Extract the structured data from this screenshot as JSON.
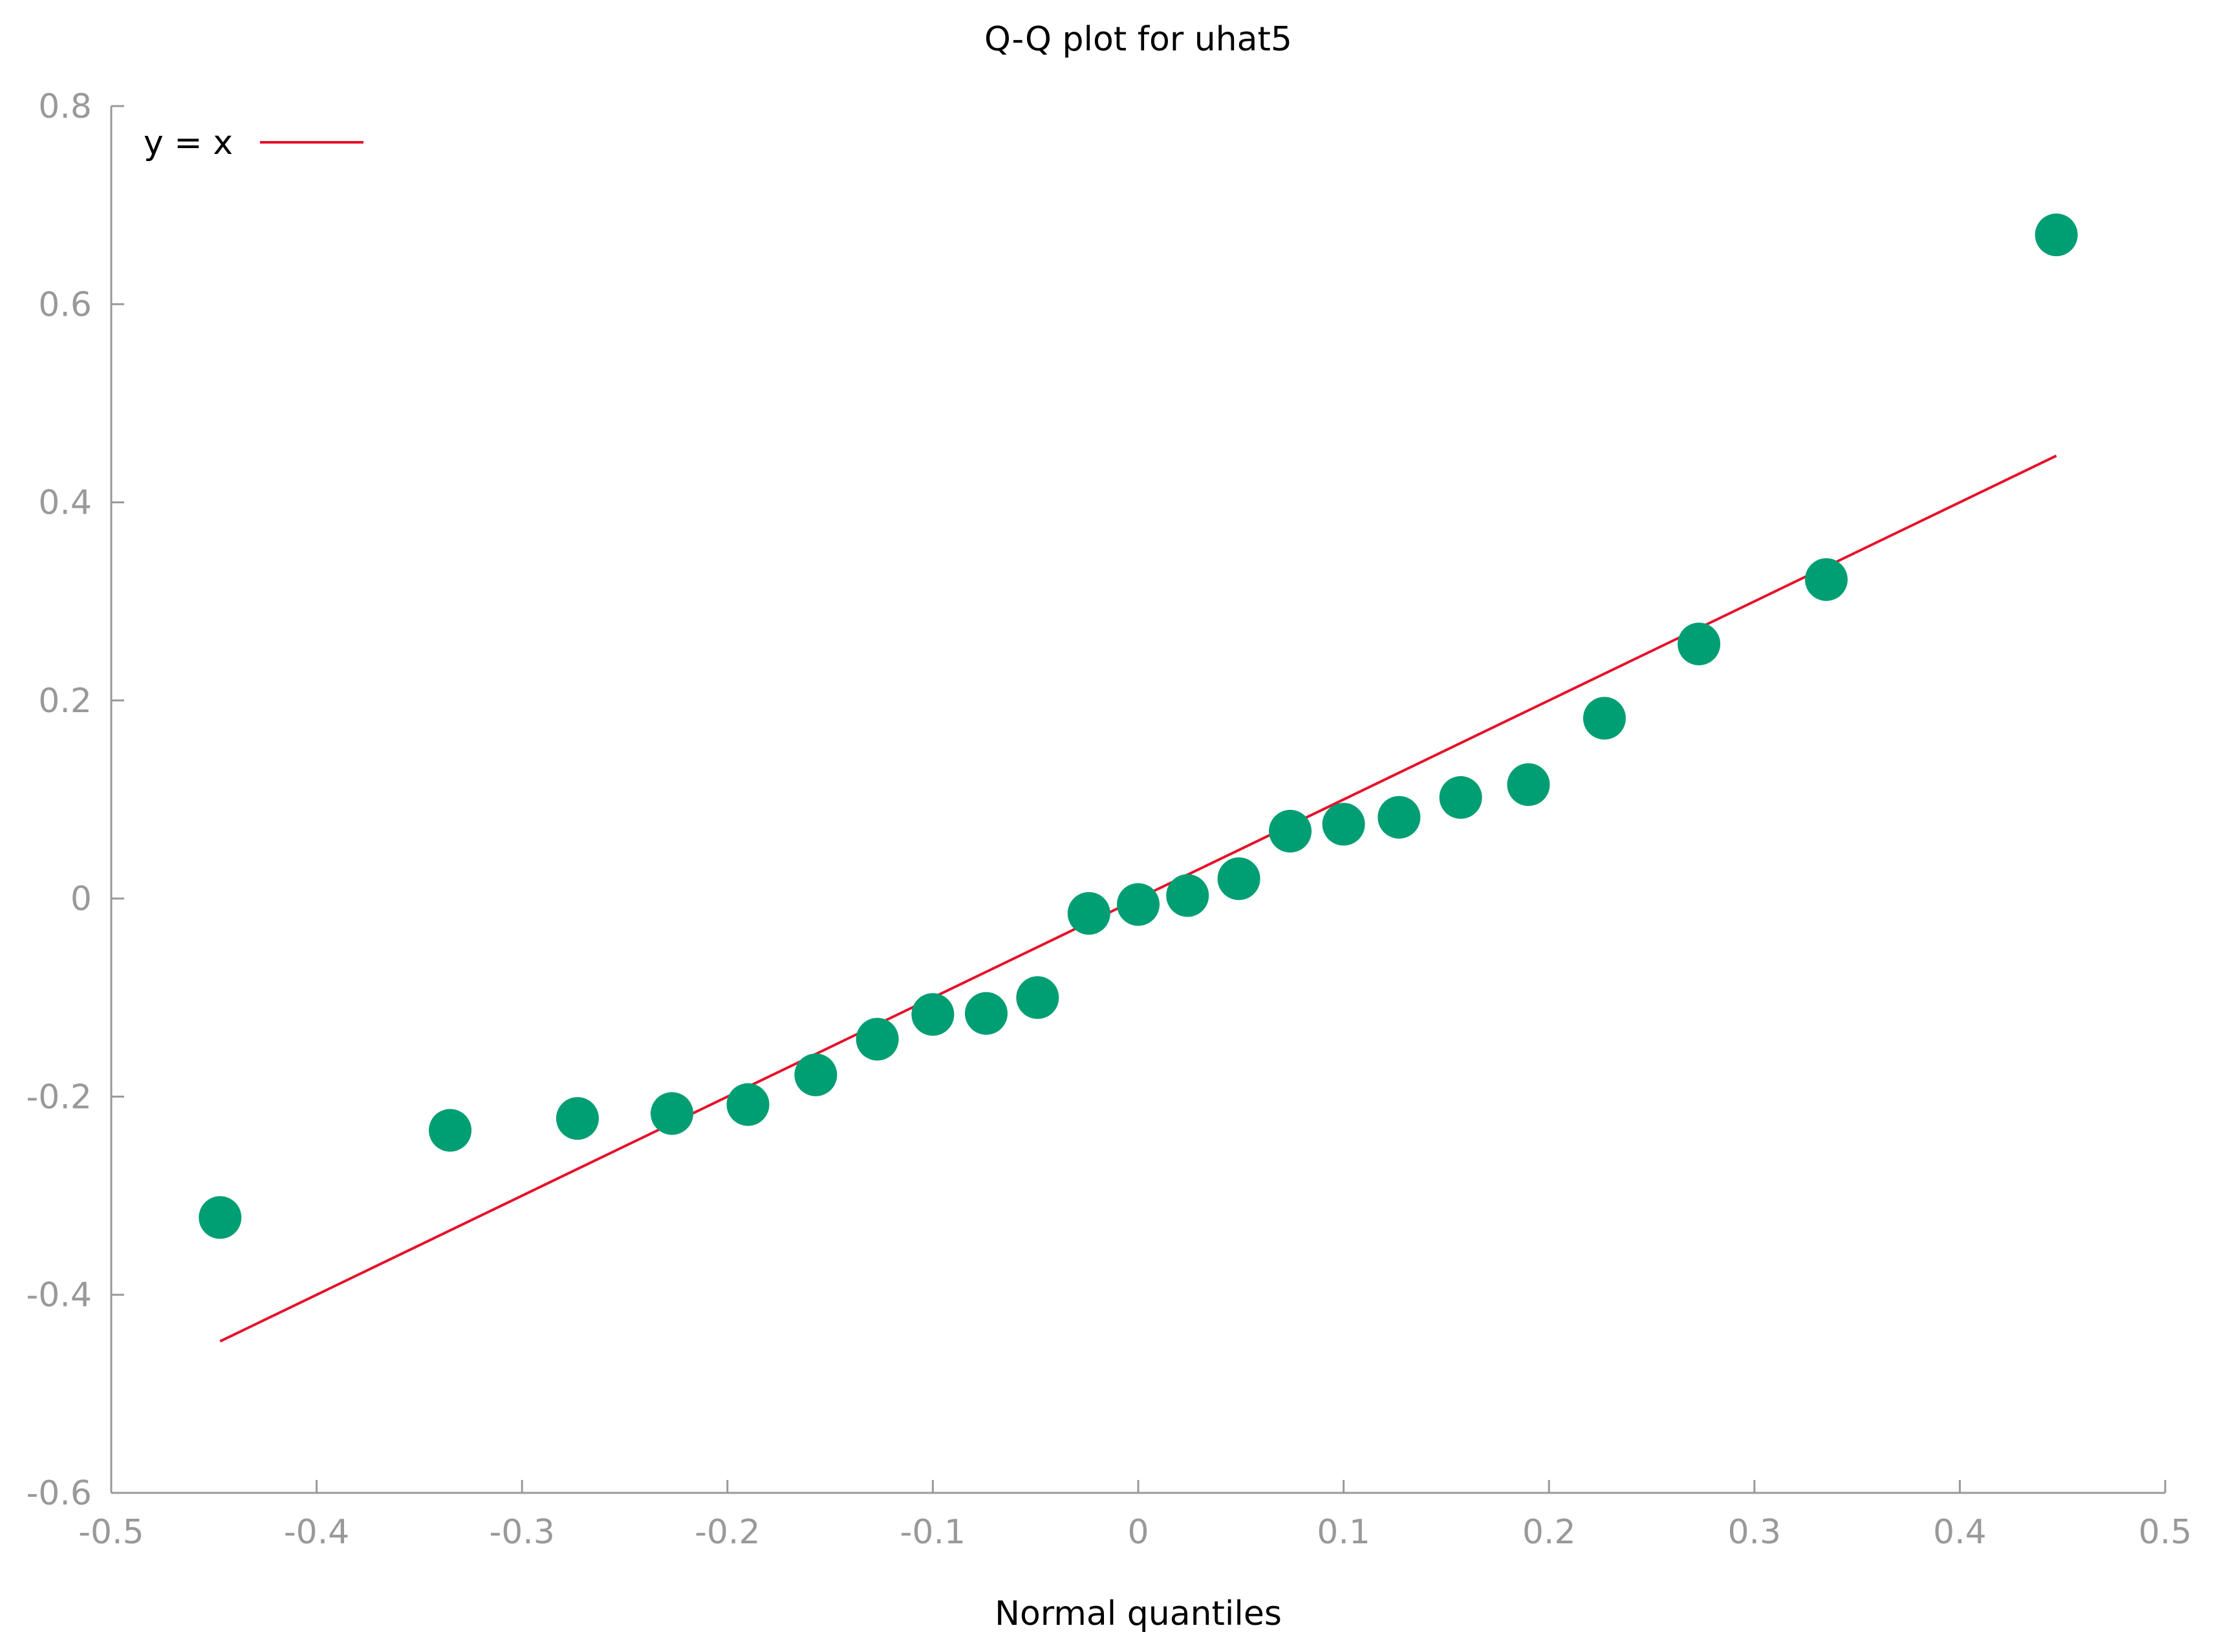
{
  "chart_data": {
    "type": "scatter",
    "title": "Q-Q plot for uhat5",
    "xlabel": "Normal quantiles",
    "ylabel": "",
    "xlim": [
      -0.5,
      0.5
    ],
    "ylim": [
      -0.6,
      0.8
    ],
    "xticks": [
      "-0.5",
      "-0.4",
      "-0.3",
      "-0.2",
      "-0.1",
      "0",
      "0.1",
      "0.2",
      "0.3",
      "0.4",
      "0.5"
    ],
    "yticks": [
      "-0.6",
      "-0.4",
      "-0.2",
      "0",
      "0.2",
      "0.4",
      "0.6",
      "0.8"
    ],
    "grid": false,
    "legend_position": "top-left",
    "series": [
      {
        "kind": "points",
        "color": "#009e73",
        "x": [
          -0.447,
          -0.335,
          -0.273,
          -0.227,
          -0.19,
          -0.157,
          -0.127,
          -0.1,
          -0.074,
          -0.049,
          -0.024,
          0.0,
          0.024,
          0.049,
          0.074,
          0.1,
          0.127,
          0.157,
          0.19,
          0.227,
          0.273,
          0.335,
          0.447
        ],
        "y": [
          -0.322,
          -0.234,
          -0.222,
          -0.217,
          -0.208,
          -0.178,
          -0.142,
          -0.117,
          -0.116,
          -0.1,
          -0.015,
          -0.006,
          0.003,
          0.02,
          0.068,
          0.075,
          0.082,
          0.102,
          0.115,
          0.182,
          0.257,
          0.322,
          0.67
        ]
      },
      {
        "kind": "line",
        "name": "y = x",
        "color": "#e6112a",
        "x": [
          -0.447,
          0.447
        ],
        "y": [
          -0.447,
          0.447
        ]
      }
    ]
  },
  "colors": {
    "axis": "#999999",
    "points": "#009e73",
    "line": "#e6112a"
  }
}
